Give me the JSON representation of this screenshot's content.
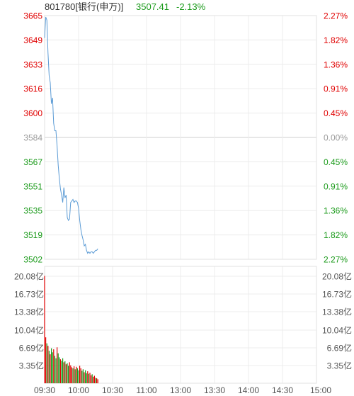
{
  "header": {
    "code_name": "801780[银行(申万)]",
    "price": "3507.41",
    "change_pct": "-2.13%"
  },
  "colors": {
    "up": "#e00000",
    "down": "#1a9a1a",
    "neutral": "#9a9a9a",
    "line": "#5b9bd5",
    "grid": "#ececec",
    "midline": "#cfcfcf"
  },
  "chart_data": [
    {
      "type": "line",
      "title": "",
      "x_ticks": [
        "09:30",
        "10:00",
        "10:30",
        "11:00",
        "13:00",
        "13:30",
        "14:00",
        "14:30",
        "15:00"
      ],
      "y_left_ticks": [
        "3665",
        "3649",
        "3633",
        "3616",
        "3600",
        "3584",
        "3567",
        "3551",
        "3535",
        "3519",
        "3502"
      ],
      "y_right_ticks": [
        "2.27%",
        "1.82%",
        "1.36%",
        "0.91%",
        "0.45%",
        "0.00%",
        "0.45%",
        "0.91%",
        "1.36%",
        "1.82%",
        "2.27%"
      ],
      "ylim": [
        3502,
        3665
      ],
      "prev_close": 3584,
      "total_minutes": 240,
      "x": [
        0,
        1,
        2,
        3,
        4,
        5,
        6,
        7,
        8,
        9,
        10,
        11,
        12,
        13,
        14,
        15,
        16,
        17,
        18,
        19,
        20,
        21,
        22,
        23,
        24,
        25,
        26,
        27,
        28,
        29,
        30,
        31,
        32,
        33,
        34,
        35,
        36,
        37,
        38,
        39,
        40,
        41,
        42,
        43,
        44,
        45,
        46,
        47
      ],
      "values": [
        3650,
        3664,
        3662,
        3640,
        3625,
        3620,
        3606,
        3610,
        3593,
        3588,
        3588,
        3578,
        3565,
        3556,
        3549,
        3545,
        3540,
        3550,
        3543,
        3545,
        3530,
        3528,
        3529,
        3540,
        3541,
        3542,
        3540,
        3541,
        3541,
        3540,
        3536,
        3528,
        3522,
        3518,
        3515,
        3511,
        3512,
        3508,
        3506,
        3507,
        3506,
        3507,
        3507,
        3506,
        3507,
        3508,
        3508,
        3509
      ]
    },
    {
      "type": "bar",
      "title": "",
      "y_left_ticks": [
        "20.08亿",
        "16.73亿",
        "13.38亿",
        "10.04亿",
        "6.69亿",
        "3.35亿"
      ],
      "y_right_ticks": [
        "20.08亿",
        "16.73亿",
        "13.38亿",
        "10.04亿",
        "6.69亿",
        "3.35亿"
      ],
      "ylim": [
        0,
        23.42
      ],
      "unit": "亿",
      "x": [
        0,
        1,
        2,
        3,
        4,
        5,
        6,
        7,
        8,
        9,
        10,
        11,
        12,
        13,
        14,
        15,
        16,
        17,
        18,
        19,
        20,
        21,
        22,
        23,
        24,
        25,
        26,
        27,
        28,
        29,
        30,
        31,
        32,
        33,
        34,
        35,
        36,
        37,
        38,
        39,
        40,
        41,
        42,
        43,
        44,
        45,
        46,
        47
      ],
      "values": [
        21.5,
        9.2,
        8.0,
        7.5,
        6.5,
        5.8,
        7.0,
        6.2,
        6.8,
        5.5,
        5.0,
        7.2,
        6.0,
        5.2,
        4.8,
        4.5,
        5.0,
        4.2,
        4.4,
        3.8,
        4.0,
        3.5,
        4.2,
        3.6,
        3.2,
        3.0,
        3.4,
        2.8,
        3.3,
        3.0,
        2.6,
        3.5,
        3.0,
        2.5,
        2.8,
        2.2,
        2.6,
        2.0,
        2.4,
        1.9,
        2.1,
        1.6,
        1.8,
        1.3,
        1.5,
        1.1,
        1.0,
        0.8
      ],
      "colors": [
        "up",
        "up",
        "down",
        "up",
        "down",
        "up",
        "down",
        "down",
        "up",
        "down",
        "down",
        "up",
        "down",
        "down",
        "up",
        "down",
        "down",
        "up",
        "down",
        "up",
        "down",
        "down",
        "up",
        "up",
        "up",
        "down",
        "up",
        "down",
        "up",
        "down",
        "down",
        "up",
        "up",
        "down",
        "down",
        "up",
        "down",
        "down",
        "up",
        "down",
        "up",
        "up",
        "down",
        "up",
        "up",
        "down",
        "up",
        "up"
      ]
    }
  ]
}
